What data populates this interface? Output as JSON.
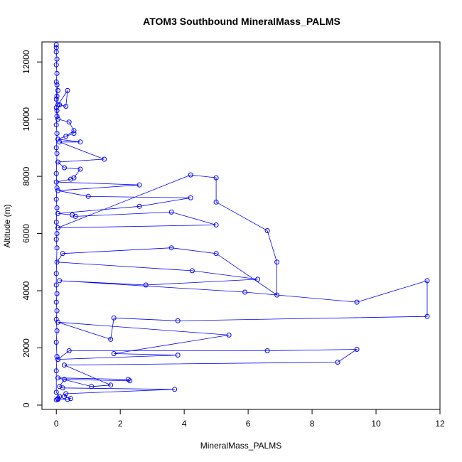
{
  "chart_data": {
    "type": "scatter",
    "title": "ATOM3 Southbound MineralMass_PALMS",
    "xlabel": "MineralMass_PALMS",
    "ylabel": "Altitude (m)",
    "xlim": [
      -0.45,
      12
    ],
    "ylim": [
      -150,
      12700
    ],
    "xticks": [
      0,
      2,
      4,
      6,
      8,
      10,
      12
    ],
    "yticks": [
      0,
      2000,
      4000,
      6000,
      8000,
      10000,
      12000
    ],
    "grid": false,
    "legend": "none",
    "color": "#0000ff",
    "connect_points": true,
    "series": [
      {
        "values": [
          [
            0.0,
            12600
          ],
          [
            0.0,
            12500
          ],
          [
            0.0,
            12350
          ],
          [
            0.02,
            12100
          ],
          [
            0.0,
            11900
          ],
          [
            0.02,
            11600
          ],
          [
            0.0,
            11300
          ],
          [
            0.05,
            11000
          ],
          [
            0.02,
            10800
          ],
          [
            0.05,
            10500
          ],
          [
            0.35,
            11000
          ],
          [
            0.3,
            10450
          ],
          [
            0.1,
            10500
          ],
          [
            0.02,
            10300
          ],
          [
            0.05,
            10000
          ],
          [
            0.4,
            9900
          ],
          [
            0.55,
            9600
          ],
          [
            0.3,
            9400
          ],
          [
            0.55,
            9500
          ],
          [
            0.05,
            9300
          ],
          [
            0.75,
            9200
          ],
          [
            0.1,
            9200
          ],
          [
            1.5,
            8600
          ],
          [
            0.05,
            8500
          ],
          [
            0.25,
            8300
          ],
          [
            0.75,
            8250
          ],
          [
            0.55,
            7950
          ],
          [
            0.45,
            7900
          ],
          [
            0.0,
            7800
          ],
          [
            2.6,
            7700
          ],
          [
            0.05,
            7500
          ],
          [
            1.0,
            7300
          ],
          [
            4.2,
            7250
          ],
          [
            2.6,
            6950
          ],
          [
            0.05,
            6700
          ],
          [
            0.5,
            6650
          ],
          [
            0.6,
            6600
          ],
          [
            3.6,
            6750
          ],
          [
            5.0,
            6300
          ],
          [
            0.05,
            6200
          ],
          [
            4.2,
            8050
          ],
          [
            5.0,
            7950
          ],
          [
            5.0,
            7100
          ],
          [
            6.6,
            6100
          ],
          [
            6.9,
            5000
          ],
          [
            6.9,
            3850
          ],
          [
            5.0,
            5300
          ],
          [
            3.6,
            5500
          ],
          [
            0.2,
            5300
          ],
          [
            0.02,
            5000
          ],
          [
            4.25,
            4700
          ],
          [
            6.3,
            4400
          ],
          [
            2.8,
            4200
          ],
          [
            0.1,
            4350
          ],
          [
            5.9,
            3950
          ],
          [
            9.4,
            3600
          ],
          [
            11.6,
            4350
          ],
          [
            11.6,
            3100
          ],
          [
            3.8,
            2950
          ],
          [
            1.8,
            3050
          ],
          [
            1.7,
            2300
          ],
          [
            0.05,
            2900
          ],
          [
            5.4,
            2450
          ],
          [
            1.8,
            1800
          ],
          [
            3.8,
            1750
          ],
          [
            0.05,
            1600
          ],
          [
            0.4,
            1900
          ],
          [
            6.6,
            1900
          ],
          [
            9.4,
            1950
          ],
          [
            8.8,
            1500
          ],
          [
            0.25,
            1400
          ],
          [
            1.7,
            700
          ],
          [
            1.1,
            650
          ],
          [
            0.05,
            950
          ],
          [
            2.25,
            900
          ],
          [
            2.3,
            850
          ],
          [
            0.25,
            900
          ],
          [
            0.1,
            650
          ],
          [
            0.2,
            600
          ],
          [
            3.7,
            550
          ],
          [
            0.3,
            400
          ],
          [
            0.25,
            300
          ],
          [
            0.45,
            230
          ],
          [
            0.35,
            200
          ],
          [
            0.05,
            200
          ],
          [
            0.0,
            180
          ],
          [
            0.05,
            230
          ],
          [
            0.1,
            300
          ],
          [
            0.0,
            450
          ],
          [
            0.0,
            1200
          ],
          [
            0.02,
            1700
          ],
          [
            0.0,
            2200
          ],
          [
            0.02,
            2600
          ],
          [
            0.0,
            3000
          ],
          [
            0.02,
            3300
          ],
          [
            0.0,
            3600
          ],
          [
            0.02,
            3900
          ],
          [
            0.0,
            4200
          ],
          [
            0.0,
            4600
          ],
          [
            0.02,
            5500
          ],
          [
            0.0,
            5800
          ],
          [
            0.02,
            6000
          ],
          [
            0.0,
            6400
          ],
          [
            0.02,
            6900
          ],
          [
            0.0,
            7200
          ],
          [
            0.02,
            7600
          ],
          [
            0.0,
            8100
          ],
          [
            0.02,
            8800
          ],
          [
            0.0,
            9000
          ],
          [
            0.02,
            9500
          ],
          [
            0.0,
            9800
          ],
          [
            0.02,
            10100
          ],
          [
            0.0,
            10400
          ],
          [
            0.0,
            10700
          ],
          [
            0.02,
            11200
          ]
        ]
      }
    ]
  }
}
